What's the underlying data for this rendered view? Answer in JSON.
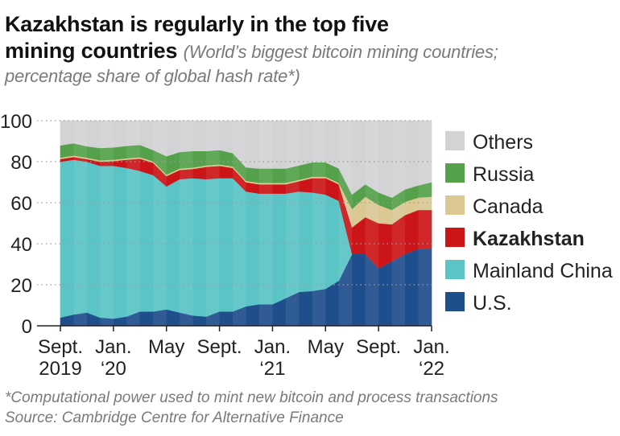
{
  "header": {
    "title_line1": "Kazakhstan is regularly in the top five",
    "title_line2": "mining countries",
    "subtitle_part1": "(World’s biggest bitcoin mining countries;",
    "subtitle_part2": "percentage share of global hash rate*)"
  },
  "footer": {
    "note": "*Computational power used to mint new bitcoin and process transactions",
    "source": "Source: Cambridge Centre for Alternative Finance"
  },
  "chart_data": {
    "type": "area",
    "stacked": true,
    "x": [
      "2019-09",
      "2019-10",
      "2019-11",
      "2019-12",
      "2020-01",
      "2020-02",
      "2020-03",
      "2020-04",
      "2020-05",
      "2020-06",
      "2020-07",
      "2020-08",
      "2020-09",
      "2020-10",
      "2020-11",
      "2020-12",
      "2021-01",
      "2021-02",
      "2021-03",
      "2021-04",
      "2021-05",
      "2021-06",
      "2021-07",
      "2021-08",
      "2021-09",
      "2021-10",
      "2021-11",
      "2021-12",
      "2022-01"
    ],
    "x_ticks": [
      {
        "index": 0,
        "line1": "Sept.",
        "line2": "2019"
      },
      {
        "index": 4,
        "line1": "Jan.",
        "line2": "‘20"
      },
      {
        "index": 8,
        "line1": "May",
        "line2": ""
      },
      {
        "index": 12,
        "line1": "Sept.",
        "line2": ""
      },
      {
        "index": 16,
        "line1": "Jan.",
        "line2": "‘21"
      },
      {
        "index": 20,
        "line1": "May",
        "line2": ""
      },
      {
        "index": 24,
        "line1": "Sept.",
        "line2": ""
      },
      {
        "index": 28,
        "line1": "Jan.",
        "line2": "‘22"
      }
    ],
    "ylim": [
      0,
      100
    ],
    "y_ticks": [
      "0",
      "20",
      "40",
      "60",
      "80",
      "100"
    ],
    "grid": "horizontal-dotted",
    "legend_position": "right",
    "series": [
      {
        "name": "U.S.",
        "color": "#1f4e8c",
        "values": [
          4,
          5.5,
          6.5,
          4,
          3.5,
          4.5,
          7,
          7,
          8,
          6.5,
          5,
          4.5,
          7,
          7,
          9.5,
          10.5,
          10.5,
          13.5,
          16.5,
          17,
          18,
          22,
          35,
          35,
          28,
          31.5,
          35,
          37.5,
          38
        ]
      },
      {
        "name": "Mainland China",
        "color": "#5bc4c6",
        "values": [
          76,
          75.5,
          73.5,
          74,
          74.5,
          72.5,
          68.5,
          66.5,
          60,
          65,
          67,
          67,
          65,
          65,
          56,
          54,
          54,
          51,
          49,
          48,
          46,
          39,
          0,
          0,
          0,
          0,
          0,
          0,
          0
        ]
      },
      {
        "name": "Kazakhstan",
        "color": "#cc1519",
        "values": [
          1.3,
          1.3,
          1.3,
          2,
          2.3,
          4,
          6,
          6,
          5,
          4.5,
          4.5,
          6,
          6,
          5,
          4.5,
          4.5,
          4.5,
          4.5,
          5,
          7,
          8,
          8,
          13,
          18,
          22,
          18,
          19,
          19,
          18.5
        ]
      },
      {
        "name": "Canada",
        "color": "#dbc893",
        "values": [
          0.7,
          0.7,
          0.7,
          0.7,
          0.7,
          0.7,
          0.7,
          0.7,
          0.7,
          0.7,
          0.7,
          0.7,
          0.7,
          0.7,
          0.7,
          0.7,
          0.7,
          0.7,
          0.7,
          0.7,
          0.7,
          0.7,
          9,
          10,
          9,
          7,
          6.5,
          6,
          6.5
        ]
      },
      {
        "name": "Russia",
        "color": "#55a14b",
        "values": [
          6,
          6,
          5.5,
          6,
          6,
          6,
          6,
          5.5,
          9,
          8,
          8,
          7,
          7,
          6.5,
          6.5,
          7,
          7,
          7,
          7,
          7,
          7,
          7,
          7,
          6,
          6,
          6,
          6,
          6,
          7
        ]
      },
      {
        "name": "Others",
        "color": "#d3d3d5",
        "values": [
          12,
          11,
          12.5,
          13.3,
          13,
          12.3,
          11.8,
          14.3,
          17.3,
          15.3,
          14.8,
          14.8,
          14.3,
          15.8,
          22.8,
          23.3,
          23.3,
          23.3,
          21.8,
          20.3,
          20.3,
          23.3,
          36,
          31,
          35,
          37.5,
          33.5,
          31.5,
          30
        ]
      }
    ]
  }
}
